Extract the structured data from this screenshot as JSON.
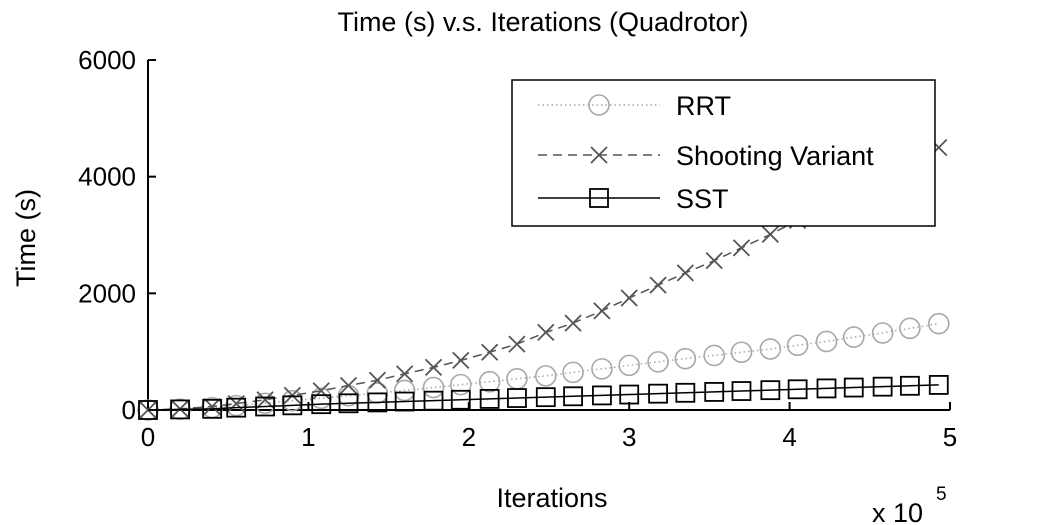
{
  "chart_data": {
    "type": "line",
    "title": "Time (s) v.s. Iterations (Quadrotor)",
    "xlabel": "Iterations",
    "ylabel": "Time (s)",
    "x_multiplier_label": "x 10",
    "x_multiplier_exponent": "5",
    "xlim": [
      0,
      5
    ],
    "ylim": [
      0,
      6000
    ],
    "x_ticks": [
      "0",
      "1",
      "2",
      "3",
      "4",
      "5"
    ],
    "y_ticks": [
      "0",
      "2000",
      "4000",
      "6000"
    ],
    "grid": false,
    "legend_position": "top-right",
    "x": [
      0,
      0.2,
      0.4,
      0.55,
      0.73,
      0.9,
      1.08,
      1.25,
      1.43,
      1.6,
      1.78,
      1.95,
      2.13,
      2.3,
      2.48,
      2.65,
      2.83,
      3.0,
      3.18,
      3.35,
      3.53,
      3.7,
      3.88,
      4.05,
      4.23,
      4.4,
      4.58,
      4.75,
      4.93
    ],
    "series": [
      {
        "name": "RRT",
        "marker": "circle",
        "line_style": "dotted",
        "color": "#a8a8a8",
        "values": [
          0,
          15,
          40,
          75,
          115,
          160,
          200,
          245,
          290,
          335,
          385,
          435,
          485,
          535,
          585,
          645,
          705,
          765,
          825,
          880,
          935,
          990,
          1045,
          1110,
          1175,
          1250,
          1320,
          1400,
          1480
        ]
      },
      {
        "name": "Shooting Variant",
        "marker": "x",
        "line_style": "dashed",
        "color": "#555555",
        "values": [
          0,
          20,
          60,
          110,
          175,
          250,
          330,
          420,
          510,
          620,
          730,
          850,
          990,
          1130,
          1330,
          1490,
          1700,
          1920,
          2140,
          2350,
          2560,
          2780,
          3010,
          3250,
          3490,
          3740,
          3990,
          4240,
          4500
        ]
      },
      {
        "name": "SST",
        "marker": "square",
        "line_style": "solid",
        "color": "#000000",
        "values": [
          0,
          10,
          20,
          40,
          60,
          80,
          100,
          115,
          130,
          145,
          160,
          175,
          190,
          205,
          220,
          235,
          250,
          265,
          280,
          295,
          310,
          325,
          340,
          355,
          370,
          385,
          400,
          415,
          430
        ]
      }
    ]
  }
}
